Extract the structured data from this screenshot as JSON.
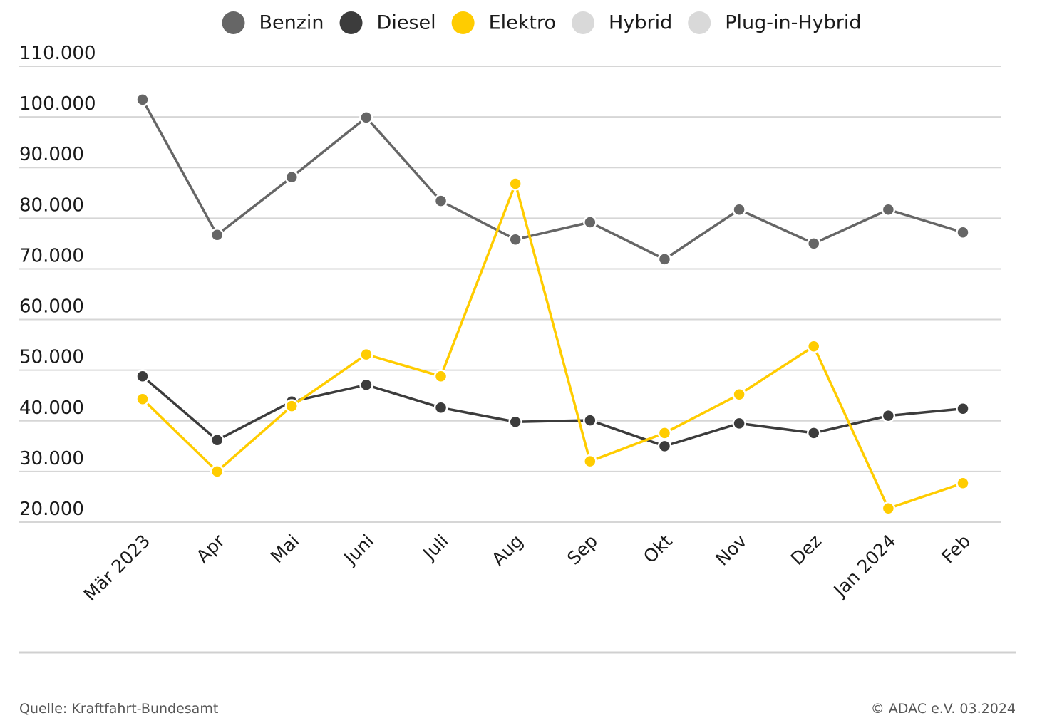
{
  "chart_data": {
    "type": "line",
    "categories": [
      "Mär 2023",
      "Apr",
      "Mai",
      "Juni",
      "Juli",
      "Aug",
      "Sep",
      "Okt",
      "Nov",
      "Dez",
      "Jan 2024",
      "Feb"
    ],
    "series": [
      {
        "name": "Benzin",
        "color": "#666666",
        "values": [
          103400,
          76700,
          88100,
          99900,
          83400,
          75800,
          79200,
          71900,
          81700,
          75000,
          81700,
          77200
        ]
      },
      {
        "name": "Diesel",
        "color": "#3c3c3c",
        "values": [
          48800,
          36200,
          43800,
          47100,
          42600,
          39800,
          40100,
          35000,
          39500,
          37600,
          41000,
          42400
        ]
      },
      {
        "name": "Elektro",
        "color": "#ffcc00",
        "values": [
          44300,
          30000,
          42900,
          53100,
          48800,
          86800,
          32000,
          37600,
          45200,
          54700,
          22700,
          27700
        ]
      },
      {
        "name": "Hybrid",
        "color": "#d9d9d9",
        "values": [
          null,
          null,
          null,
          null,
          null,
          null,
          null,
          null,
          null,
          null,
          null,
          null
        ]
      },
      {
        "name": "Plug-in-Hybrid",
        "color": "#d9d9d9",
        "values": [
          null,
          null,
          null,
          null,
          null,
          null,
          null,
          null,
          null,
          null,
          null,
          null
        ]
      }
    ],
    "ylim": [
      20000,
      110000
    ],
    "yticks": [
      {
        "value": 20000,
        "label": "20.000"
      },
      {
        "value": 30000,
        "label": "30.000"
      },
      {
        "value": 40000,
        "label": "40.000"
      },
      {
        "value": 50000,
        "label": "50.000"
      },
      {
        "value": 60000,
        "label": "60.000"
      },
      {
        "value": 70000,
        "label": "70.000"
      },
      {
        "value": 80000,
        "label": "80.000"
      },
      {
        "value": 90000,
        "label": "90.000"
      },
      {
        "value": 100000,
        "label": "100.000"
      },
      {
        "value": 110000,
        "label": "110.000"
      }
    ],
    "grid": true,
    "legend": "top",
    "source": "Quelle: Kraftfahrt-Bundesamt",
    "copyright": "© ADAC e.V. 03.2024"
  }
}
